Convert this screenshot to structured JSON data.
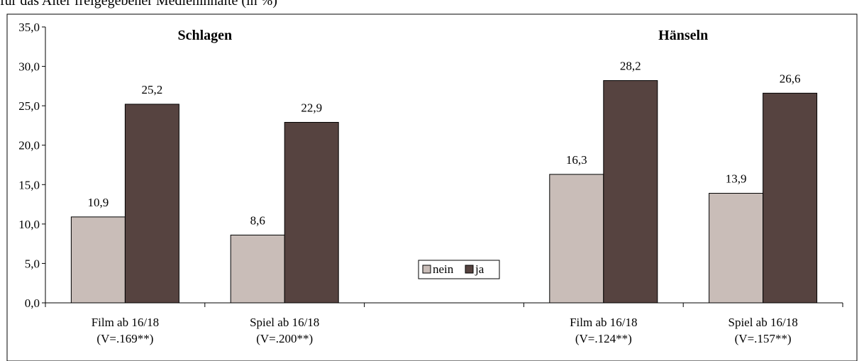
{
  "caption": "für das Alter freigegebener Medieninhalte (in %)",
  "chart_data": {
    "type": "bar",
    "ylim": [
      0,
      35
    ],
    "y_ticks": [
      "0,0",
      "5,0",
      "10,0",
      "15,0",
      "20,0",
      "25,0",
      "30,0",
      "35,0"
    ],
    "grid": false,
    "legend_position": "center",
    "panels": [
      {
        "title": "Schlagen",
        "categories": [
          "Film ab 16/18\n(V=.169**)",
          "Spiel ab 16/18\n(V=.200**)"
        ],
        "series": [
          {
            "name": "nein",
            "values": [
              10.9,
              8.6
            ],
            "labels": [
              "10,9",
              "8,6"
            ]
          },
          {
            "name": "ja",
            "values": [
              25.2,
              22.9
            ],
            "labels": [
              "25,2",
              "22,9"
            ]
          }
        ]
      },
      {
        "title": "Hänseln",
        "categories": [
          "Film ab 16/18\n(V=.124**)",
          "Spiel ab 16/18\n(V=.157**)"
        ],
        "series": [
          {
            "name": "nein",
            "values": [
              16.3,
              13.9
            ],
            "labels": [
              "16,3",
              "13,9"
            ]
          },
          {
            "name": "ja",
            "values": [
              28.2,
              26.6
            ],
            "labels": [
              "28,2",
              "26,6"
            ]
          }
        ]
      }
    ],
    "colors": {
      "nein": "#c9bdb8",
      "ja": "#564340"
    }
  }
}
